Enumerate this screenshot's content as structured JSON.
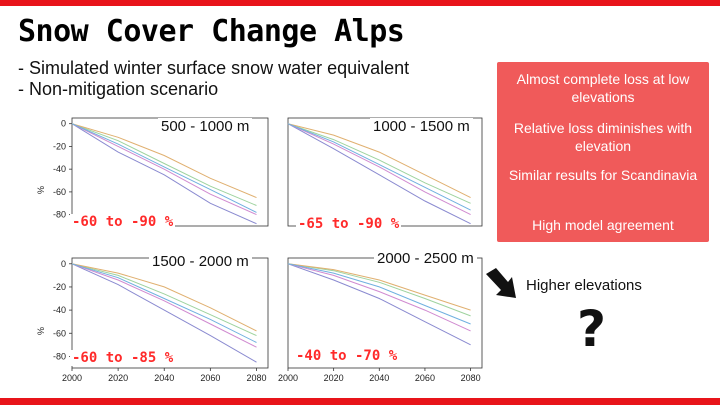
{
  "slide": {
    "title": "Snow Cover Change Alps",
    "subtitle_line1": "- Simulated winter surface snow water equivalent",
    "subtitle_line2": "- Non-mitigation scenario"
  },
  "findings": [
    "Almost complete loss at low elevations",
    "Relative loss diminishes with elevation",
    "Similar results for Scandinavia",
    "High model agreement"
  ],
  "annotation": {
    "higher_label": "Higher elevations",
    "question_mark": "?"
  },
  "colors": {
    "accent": "#e8141a",
    "panel": "#f05a5a",
    "range_text": "#ff2a2a"
  },
  "chart_data": [
    {
      "type": "line",
      "title": "500 - 1000 m",
      "annotation": "-60 to -90 %",
      "ylabel": "%",
      "yticks": [
        0,
        -20,
        -40,
        -60,
        -80
      ],
      "ylim": [
        -90,
        5
      ],
      "xlim": [
        2000,
        2085
      ],
      "xticks": [],
      "series": [
        {
          "x": [
            2000,
            2020,
            2040,
            2060,
            2080
          ],
          "values": [
            0,
            -25,
            -45,
            -70,
            -88
          ]
        },
        {
          "x": [
            2000,
            2020,
            2040,
            2060,
            2080
          ],
          "values": [
            0,
            -20,
            -40,
            -62,
            -80
          ]
        },
        {
          "x": [
            2000,
            2020,
            2040,
            2060,
            2080
          ],
          "values": [
            0,
            -15,
            -35,
            -55,
            -72
          ]
        },
        {
          "x": [
            2000,
            2020,
            2040,
            2060,
            2080
          ],
          "values": [
            0,
            -12,
            -28,
            -48,
            -65
          ]
        },
        {
          "x": [
            2000,
            2020,
            2040,
            2060,
            2080
          ],
          "values": [
            0,
            -18,
            -38,
            -58,
            -78
          ]
        }
      ]
    },
    {
      "type": "line",
      "title": "1000 - 1500 m",
      "annotation": "-65 to -90 %",
      "ylabel": "",
      "yticks": [],
      "ylim": [
        -90,
        5
      ],
      "xlim": [
        2000,
        2085
      ],
      "xticks": [],
      "series": [
        {
          "x": [
            2000,
            2020,
            2040,
            2060,
            2080
          ],
          "values": [
            0,
            -22,
            -45,
            -68,
            -88
          ]
        },
        {
          "x": [
            2000,
            2020,
            2040,
            2060,
            2080
          ],
          "values": [
            0,
            -18,
            -38,
            -60,
            -80
          ]
        },
        {
          "x": [
            2000,
            2020,
            2040,
            2060,
            2080
          ],
          "values": [
            0,
            -14,
            -32,
            -52,
            -70
          ]
        },
        {
          "x": [
            2000,
            2020,
            2040,
            2060,
            2080
          ],
          "values": [
            0,
            -10,
            -25,
            -45,
            -65
          ]
        },
        {
          "x": [
            2000,
            2020,
            2040,
            2060,
            2080
          ],
          "values": [
            0,
            -16,
            -36,
            -56,
            -76
          ]
        }
      ]
    },
    {
      "type": "line",
      "title": "1500 - 2000 m",
      "annotation": "-60 to -85 %",
      "ylabel": "%",
      "yticks": [
        0,
        -20,
        -40,
        -60,
        -80
      ],
      "ylim": [
        -90,
        5
      ],
      "xlim": [
        2000,
        2085
      ],
      "xticks": [
        2000,
        2020,
        2040,
        2060,
        2080
      ],
      "series": [
        {
          "x": [
            2000,
            2020,
            2040,
            2060,
            2080
          ],
          "values": [
            0,
            -18,
            -40,
            -62,
            -85
          ]
        },
        {
          "x": [
            2000,
            2020,
            2040,
            2060,
            2080
          ],
          "values": [
            0,
            -14,
            -32,
            -52,
            -72
          ]
        },
        {
          "x": [
            2000,
            2020,
            2040,
            2060,
            2080
          ],
          "values": [
            0,
            -10,
            -26,
            -44,
            -62
          ]
        },
        {
          "x": [
            2000,
            2020,
            2040,
            2060,
            2080
          ],
          "values": [
            0,
            -8,
            -20,
            -38,
            -58
          ]
        },
        {
          "x": [
            2000,
            2020,
            2040,
            2060,
            2080
          ],
          "values": [
            0,
            -12,
            -30,
            -48,
            -68
          ]
        }
      ]
    },
    {
      "type": "line",
      "title": "2000 - 2500 m",
      "annotation": "-40 to -70 %",
      "ylabel": "",
      "yticks": [],
      "ylim": [
        -90,
        5
      ],
      "xlim": [
        2000,
        2085
      ],
      "xticks": [
        2000,
        2020,
        2040,
        2060,
        2080
      ],
      "series": [
        {
          "x": [
            2000,
            2020,
            2040,
            2060,
            2080
          ],
          "values": [
            0,
            -14,
            -30,
            -50,
            -70
          ]
        },
        {
          "x": [
            2000,
            2020,
            2040,
            2060,
            2080
          ],
          "values": [
            0,
            -10,
            -24,
            -40,
            -58
          ]
        },
        {
          "x": [
            2000,
            2020,
            2040,
            2060,
            2080
          ],
          "values": [
            0,
            -6,
            -16,
            -30,
            -45
          ]
        },
        {
          "x": [
            2000,
            2020,
            2040,
            2060,
            2080
          ],
          "values": [
            0,
            -5,
            -14,
            -27,
            -40
          ]
        },
        {
          "x": [
            2000,
            2020,
            2040,
            2060,
            2080
          ],
          "values": [
            0,
            -8,
            -20,
            -36,
            -52
          ]
        }
      ]
    }
  ]
}
